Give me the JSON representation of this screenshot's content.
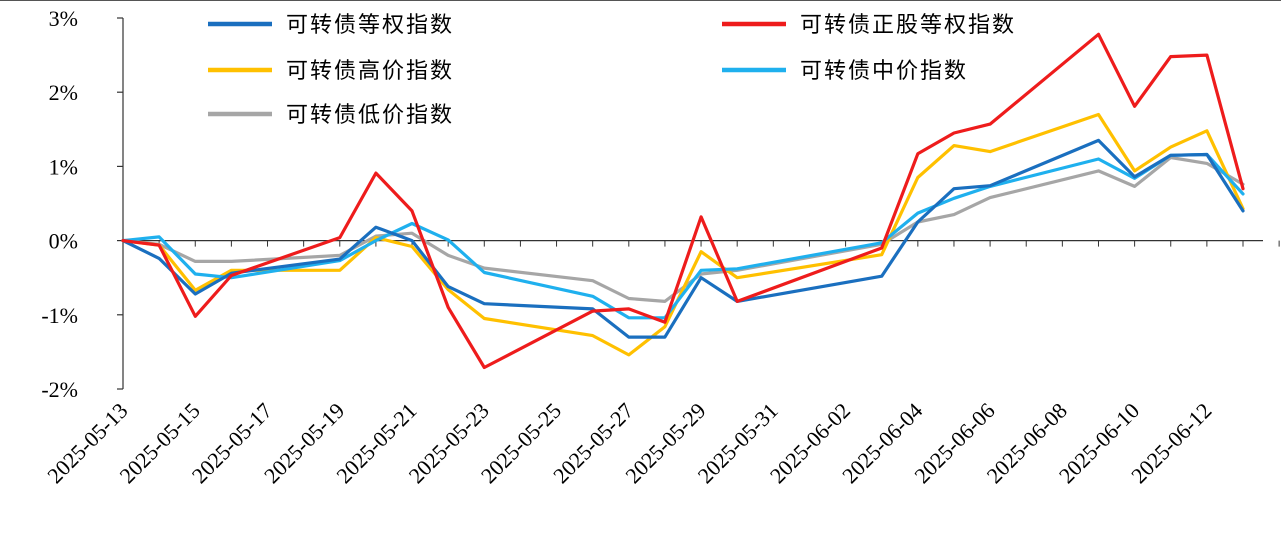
{
  "chart_data": {
    "type": "line",
    "title": "",
    "xlabel": "",
    "ylabel": "",
    "x": [
      "2025-05-13",
      "2025-05-14",
      "2025-05-15",
      "2025-05-16",
      "2025-05-19",
      "2025-05-20",
      "2025-05-21",
      "2025-05-22",
      "2025-05-23",
      "2025-05-26",
      "2025-05-27",
      "2025-05-28",
      "2025-05-29",
      "2025-05-30",
      "2025-06-03",
      "2025-06-04",
      "2025-06-05",
      "2025-06-06",
      "2025-06-09",
      "2025-06-10",
      "2025-06-11",
      "2025-06-12",
      "2025-06-13"
    ],
    "x_tick_labels": [
      "2025-05-13",
      "2025-05-15",
      "2025-05-17",
      "2025-05-19",
      "2025-05-21",
      "2025-05-23",
      "2025-05-25",
      "2025-05-27",
      "2025-05-29",
      "2025-05-31",
      "2025-06-02",
      "2025-06-04",
      "2025-06-06",
      "2025-06-08",
      "2025-06-10",
      "2025-06-12"
    ],
    "ylim": [
      -2,
      3
    ],
    "y_ticks": [
      -2,
      -1,
      0,
      1,
      2,
      3
    ],
    "y_tick_format": "percent",
    "grid": false,
    "legend_position": "top",
    "series": [
      {
        "name": "可转债等权指数",
        "color": "#1A6FBF",
        "values": [
          0.0,
          -0.24,
          -0.72,
          -0.44,
          -0.25,
          0.18,
          0.0,
          -0.62,
          -0.85,
          -0.92,
          -1.3,
          -1.3,
          -0.5,
          -0.82,
          -0.48,
          0.25,
          0.7,
          0.74,
          1.35,
          0.86,
          1.15,
          1.16,
          0.4
        ]
      },
      {
        "name": "可转债正股等权指数",
        "color": "#EE1C1C",
        "values": [
          0.0,
          -0.06,
          -1.02,
          -0.47,
          0.04,
          0.91,
          0.4,
          -0.9,
          -1.71,
          -0.95,
          -0.92,
          -1.1,
          0.32,
          -0.82,
          -0.1,
          1.17,
          1.45,
          1.57,
          2.78,
          1.81,
          2.48,
          2.5,
          0.7
        ]
      },
      {
        "name": "可转债高价指数",
        "color": "#FFC000",
        "values": [
          0.0,
          -0.06,
          -0.67,
          -0.4,
          -0.4,
          0.04,
          -0.08,
          -0.66,
          -1.05,
          -1.28,
          -1.54,
          -1.16,
          -0.15,
          -0.5,
          -0.19,
          0.85,
          1.28,
          1.2,
          1.7,
          0.94,
          1.26,
          1.48,
          0.43
        ]
      },
      {
        "name": "可转债中价指数",
        "color": "#1FB0EE",
        "values": [
          0.0,
          0.05,
          -0.45,
          -0.5,
          -0.27,
          0.0,
          0.23,
          0.01,
          -0.43,
          -0.75,
          -1.04,
          -1.04,
          -0.4,
          -0.38,
          -0.03,
          0.37,
          0.57,
          0.73,
          1.1,
          0.84,
          1.15,
          1.16,
          0.63
        ]
      },
      {
        "name": "可转债低价指数",
        "color": "#A6A6A6",
        "values": [
          0.0,
          -0.05,
          -0.28,
          -0.28,
          -0.2,
          0.06,
          0.1,
          -0.2,
          -0.37,
          -0.54,
          -0.78,
          -0.82,
          -0.45,
          -0.4,
          -0.05,
          0.25,
          0.35,
          0.58,
          0.94,
          0.73,
          1.12,
          1.04,
          0.76
        ]
      }
    ]
  }
}
